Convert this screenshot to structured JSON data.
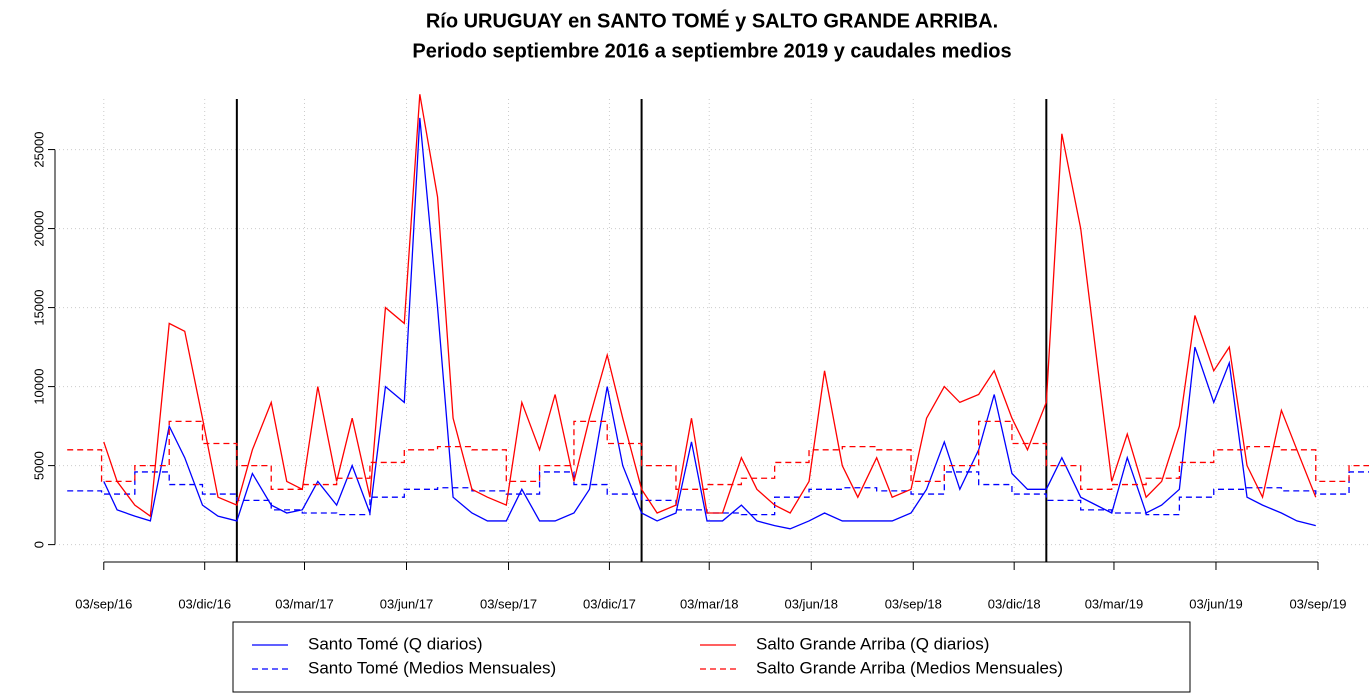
{
  "chart_data": {
    "type": "line",
    "title": "Río URUGUAY en SANTO TOMÉ y SALTO GRANDE ARRIBA.",
    "subtitle": "Periodo septiembre 2016 a septiembre 2019 y caudales medios",
    "xlim": [
      "2016-07-21",
      "2019-10-19"
    ],
    "ylim": [
      -1100,
      28200
    ],
    "yticks": [
      0,
      5000,
      10000,
      15000,
      20000,
      25000
    ],
    "xticks": [
      {
        "value": "2016-09-03",
        "label": "03/sep/16"
      },
      {
        "value": "2016-12-03",
        "label": "03/dic/16"
      },
      {
        "value": "2017-03-03",
        "label": "03/mar/17"
      },
      {
        "value": "2017-06-03",
        "label": "03/jun/17"
      },
      {
        "value": "2017-09-03",
        "label": "03/sep/17"
      },
      {
        "value": "2017-12-03",
        "label": "03/dic/17"
      },
      {
        "value": "2018-03-03",
        "label": "03/mar/18"
      },
      {
        "value": "2018-06-03",
        "label": "03/jun/18"
      },
      {
        "value": "2018-09-03",
        "label": "03/sep/18"
      },
      {
        "value": "2018-12-03",
        "label": "03/dic/18"
      },
      {
        "value": "2019-03-03",
        "label": "03/mar/19"
      },
      {
        "value": "2019-06-03",
        "label": "03/jun/19"
      },
      {
        "value": "2019-09-03",
        "label": "03/sep/19"
      }
    ],
    "year_lines": [
      "2017-01-01",
      "2018-01-01",
      "2019-01-01"
    ],
    "grid": true,
    "series": [
      {
        "name": "Santo Tomé (Q diarios)",
        "color": "#0000ff",
        "dashed": false,
        "x": [
          "2016-09-03",
          "2016-09-15",
          "2016-10-01",
          "2016-10-15",
          "2016-11-01",
          "2016-11-15",
          "2016-12-01",
          "2016-12-15",
          "2017-01-01",
          "2017-01-15",
          "2017-02-01",
          "2017-02-15",
          "2017-03-01",
          "2017-03-15",
          "2017-04-01",
          "2017-04-15",
          "2017-05-01",
          "2017-05-15",
          "2017-06-01",
          "2017-06-15",
          "2017-07-01",
          "2017-07-15",
          "2017-08-01",
          "2017-08-15",
          "2017-09-01",
          "2017-09-15",
          "2017-10-01",
          "2017-10-15",
          "2017-11-01",
          "2017-11-15",
          "2017-12-01",
          "2017-12-15",
          "2018-01-01",
          "2018-01-15",
          "2018-02-01",
          "2018-02-15",
          "2018-03-01",
          "2018-03-15",
          "2018-04-01",
          "2018-04-15",
          "2018-05-01",
          "2018-05-15",
          "2018-06-01",
          "2018-06-15",
          "2018-07-01",
          "2018-07-15",
          "2018-08-01",
          "2018-08-15",
          "2018-09-01",
          "2018-09-15",
          "2018-10-01",
          "2018-10-15",
          "2018-11-01",
          "2018-11-15",
          "2018-12-01",
          "2018-12-15",
          "2019-01-01",
          "2019-01-15",
          "2019-02-01",
          "2019-02-15",
          "2019-03-01",
          "2019-03-15",
          "2019-04-01",
          "2019-04-15",
          "2019-05-01",
          "2019-05-15",
          "2019-06-01",
          "2019-06-15",
          "2019-07-01",
          "2019-07-15",
          "2019-08-01",
          "2019-08-15",
          "2019-09-01"
        ],
        "values": [
          4000,
          2200,
          1800,
          1500,
          7500,
          5500,
          2500,
          1800,
          1500,
          4500,
          2500,
          2000,
          2200,
          4000,
          2500,
          5000,
          2000,
          10000,
          9000,
          27000,
          15000,
          3000,
          2000,
          1500,
          1500,
          3500,
          1500,
          1500,
          2000,
          3500,
          10000,
          5000,
          2000,
          1500,
          2000,
          6500,
          1500,
          1500,
          2500,
          1500,
          1200,
          1000,
          1500,
          2000,
          1500,
          1500,
          1500,
          1500,
          2000,
          3500,
          6500,
          3500,
          6000,
          9500,
          4500,
          3500,
          3500,
          5500,
          3000,
          2500,
          2000,
          5500,
          2000,
          2500,
          3500,
          12500,
          9000,
          11500,
          3000,
          2500,
          2000,
          1500,
          1200
        ]
      },
      {
        "name": "Santo Tomé (Medios Mensuales)",
        "color": "#0000ff",
        "dashed": true,
        "x": [
          "2016-08-01",
          "2016-09-01",
          "2016-10-01",
          "2016-11-01",
          "2016-12-01",
          "2017-01-01",
          "2017-02-01",
          "2017-03-01",
          "2017-04-01",
          "2017-05-01",
          "2017-06-01",
          "2017-07-01",
          "2017-08-01",
          "2017-09-01",
          "2017-10-01",
          "2017-11-01",
          "2017-12-01",
          "2018-01-01",
          "2018-02-01",
          "2018-03-01",
          "2018-04-01",
          "2018-05-01",
          "2018-06-01",
          "2018-07-01",
          "2018-08-01",
          "2018-09-01",
          "2018-10-01",
          "2018-11-01",
          "2018-12-01",
          "2019-01-01",
          "2019-02-01",
          "2019-03-01",
          "2019-04-01",
          "2019-05-01",
          "2019-06-01",
          "2019-07-01",
          "2019-08-01",
          "2019-09-01",
          "2019-10-01"
        ],
        "values": [
          3400,
          3200,
          4600,
          3800,
          3200,
          2800,
          2200,
          2000,
          1900,
          3000,
          3500,
          3600,
          3400,
          3200,
          4600,
          3800,
          3200,
          2800,
          2200,
          2000,
          1900,
          3000,
          3500,
          3600,
          3400,
          3200,
          4600,
          3800,
          3200,
          2800,
          2200,
          2000,
          1900,
          3000,
          3500,
          3600,
          3400,
          3200,
          4600
        ]
      },
      {
        "name": "Salto Grande Arriba (Q diarios)",
        "color": "#ff0000",
        "dashed": false,
        "x": [
          "2016-09-03",
          "2016-09-15",
          "2016-10-01",
          "2016-10-15",
          "2016-11-01",
          "2016-11-15",
          "2016-12-01",
          "2016-12-15",
          "2017-01-01",
          "2017-01-15",
          "2017-02-01",
          "2017-02-15",
          "2017-03-01",
          "2017-03-15",
          "2017-04-01",
          "2017-04-15",
          "2017-05-01",
          "2017-05-15",
          "2017-06-01",
          "2017-06-15",
          "2017-07-01",
          "2017-07-15",
          "2017-08-01",
          "2017-08-15",
          "2017-09-01",
          "2017-09-15",
          "2017-10-01",
          "2017-10-15",
          "2017-11-01",
          "2017-11-15",
          "2017-12-01",
          "2017-12-15",
          "2018-01-01",
          "2018-01-15",
          "2018-02-01",
          "2018-02-15",
          "2018-03-01",
          "2018-03-15",
          "2018-04-01",
          "2018-04-15",
          "2018-05-01",
          "2018-05-15",
          "2018-06-01",
          "2018-06-15",
          "2018-07-01",
          "2018-07-15",
          "2018-08-01",
          "2018-08-15",
          "2018-09-01",
          "2018-09-15",
          "2018-10-01",
          "2018-10-15",
          "2018-11-01",
          "2018-11-15",
          "2018-12-01",
          "2018-12-15",
          "2019-01-01",
          "2019-01-15",
          "2019-02-01",
          "2019-02-15",
          "2019-03-01",
          "2019-03-15",
          "2019-04-01",
          "2019-04-15",
          "2019-05-01",
          "2019-05-15",
          "2019-06-01",
          "2019-06-15",
          "2019-07-01",
          "2019-07-15",
          "2019-08-01",
          "2019-08-15",
          "2019-09-01"
        ],
        "values": [
          6500,
          4000,
          2500,
          1800,
          14000,
          13500,
          8000,
          3000,
          2500,
          6000,
          9000,
          4000,
          3500,
          10000,
          4000,
          8000,
          3000,
          15000,
          14000,
          28500,
          22000,
          8000,
          3500,
          3000,
          2500,
          9000,
          6000,
          9500,
          4000,
          8000,
          12000,
          8000,
          3500,
          2000,
          2500,
          8000,
          2000,
          2000,
          5500,
          3500,
          2500,
          2000,
          4000,
          11000,
          5000,
          3000,
          5500,
          3000,
          3500,
          8000,
          10000,
          9000,
          9500,
          11000,
          8000,
          6000,
          9000,
          26000,
          20000,
          12000,
          4000,
          7000,
          3000,
          4000,
          7500,
          14500,
          11000,
          12500,
          5000,
          3000,
          8500,
          6000,
          3000
        ]
      },
      {
        "name": "Salto Grande Arriba (Medios Mensuales)",
        "color": "#ff0000",
        "dashed": true,
        "x": [
          "2016-08-01",
          "2016-09-01",
          "2016-10-01",
          "2016-11-01",
          "2016-12-01",
          "2017-01-01",
          "2017-02-01",
          "2017-03-01",
          "2017-04-01",
          "2017-05-01",
          "2017-06-01",
          "2017-07-01",
          "2017-08-01",
          "2017-09-01",
          "2017-10-01",
          "2017-11-01",
          "2017-12-01",
          "2018-01-01",
          "2018-02-01",
          "2018-03-01",
          "2018-04-01",
          "2018-05-01",
          "2018-06-01",
          "2018-07-01",
          "2018-08-01",
          "2018-09-01",
          "2018-10-01",
          "2018-11-01",
          "2018-12-01",
          "2019-01-01",
          "2019-02-01",
          "2019-03-01",
          "2019-04-01",
          "2019-05-01",
          "2019-06-01",
          "2019-07-01",
          "2019-08-01",
          "2019-09-01",
          "2019-10-01"
        ],
        "values": [
          6000,
          4000,
          5000,
          7800,
          6400,
          5000,
          3500,
          3800,
          4200,
          5200,
          6000,
          6200,
          6000,
          4000,
          5000,
          7800,
          6400,
          5000,
          3500,
          3800,
          4200,
          5200,
          6000,
          6200,
          6000,
          4000,
          5000,
          7800,
          6400,
          5000,
          3500,
          3800,
          4200,
          5200,
          6000,
          6200,
          6000,
          4000,
          5000
        ]
      }
    ]
  }
}
